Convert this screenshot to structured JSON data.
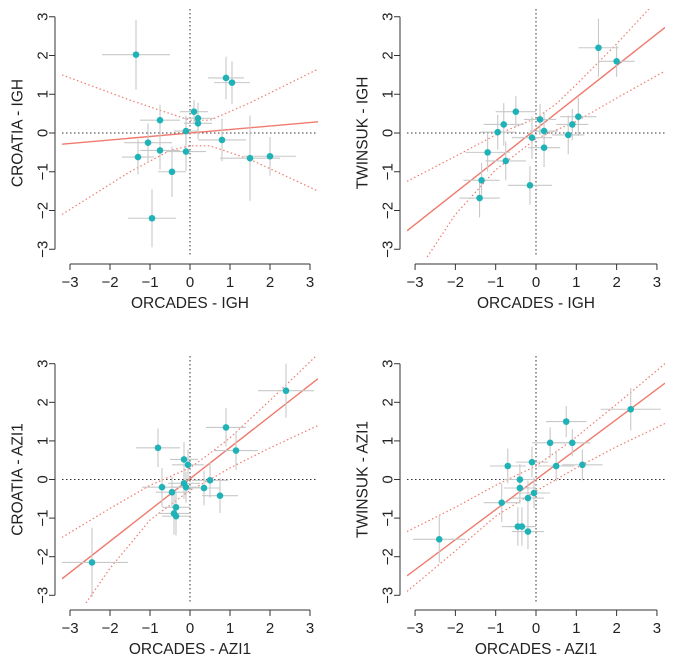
{
  "colors": {
    "point": "#1fb3b8",
    "fit": "#ef7a6e",
    "errorbar": "#c8c8c8",
    "axis": "#333333",
    "zero": "#333333"
  },
  "chart_data": [
    {
      "type": "scatter",
      "xlabel": "ORCADES - IGH",
      "ylabel": "CROATIA - IGH",
      "xlim": [
        -3.2,
        3.2
      ],
      "ylim": [
        -3.2,
        3.2
      ],
      "xticks": [
        "−3",
        "−2",
        "−1",
        "0",
        "1",
        "2",
        "3"
      ],
      "yticks": [
        "−3",
        "−2",
        "−1",
        "0",
        "1",
        "2",
        "3"
      ],
      "fit": {
        "slope": 0.09,
        "intercept": 0.0
      },
      "ci_upper": [
        [
          -3.2,
          1.5
        ],
        [
          -1.5,
          0.85
        ],
        [
          -0.5,
          0.5
        ],
        [
          0,
          0.33
        ],
        [
          0.5,
          0.33
        ],
        [
          1.5,
          0.78
        ],
        [
          3.2,
          1.65
        ]
      ],
      "ci_lower": [
        [
          -3.2,
          -2.1
        ],
        [
          -1.5,
          -1.0
        ],
        [
          -0.5,
          -0.45
        ],
        [
          0,
          -0.33
        ],
        [
          0.5,
          -0.33
        ],
        [
          1.5,
          -0.68
        ],
        [
          3.2,
          -1.5
        ]
      ],
      "points": [
        {
          "x": -1.35,
          "y": 2.02,
          "xerr": 0.85,
          "yerr": 0.9
        },
        {
          "x": 0.9,
          "y": 1.42,
          "xerr": 0.45,
          "yerr": 0.55
        },
        {
          "x": 1.05,
          "y": 1.3,
          "xerr": 0.45,
          "yerr": 0.55
        },
        {
          "x": 0.1,
          "y": 0.55,
          "xerr": 0.35,
          "yerr": 0.3
        },
        {
          "x": 0.2,
          "y": 0.38,
          "xerr": 0.4,
          "yerr": 0.4
        },
        {
          "x": -0.75,
          "y": 0.33,
          "xerr": 0.5,
          "yerr": 0.4
        },
        {
          "x": 0.2,
          "y": 0.25,
          "xerr": 0.35,
          "yerr": 0.4
        },
        {
          "x": -0.1,
          "y": 0.05,
          "xerr": 0.3,
          "yerr": 0.4
        },
        {
          "x": -1.05,
          "y": -0.25,
          "xerr": 0.6,
          "yerr": 0.5
        },
        {
          "x": 0.8,
          "y": -0.18,
          "xerr": 0.6,
          "yerr": 0.55
        },
        {
          "x": -0.75,
          "y": -0.45,
          "xerr": 0.5,
          "yerr": 0.5
        },
        {
          "x": -0.1,
          "y": -0.48,
          "xerr": 0.5,
          "yerr": 0.5
        },
        {
          "x": -1.3,
          "y": -0.62,
          "xerr": 0.4,
          "yerr": 0.45
        },
        {
          "x": 2.0,
          "y": -0.6,
          "xerr": 0.65,
          "yerr": 0.5
        },
        {
          "x": 1.5,
          "y": -0.65,
          "xerr": 0.75,
          "yerr": 1.1
        },
        {
          "x": -0.45,
          "y": -1.0,
          "xerr": 0.35,
          "yerr": 0.65
        },
        {
          "x": -0.95,
          "y": -2.2,
          "xerr": 0.6,
          "yerr": 0.75
        }
      ]
    },
    {
      "type": "scatter",
      "xlabel": "ORCADES - IGH",
      "ylabel": "TWINSUK - IGH",
      "xlim": [
        -3.2,
        3.2
      ],
      "ylim": [
        -3.2,
        3.2
      ],
      "xticks": [
        "−3",
        "−2",
        "−1",
        "0",
        "1",
        "2",
        "3"
      ],
      "yticks": [
        "−3",
        "−2",
        "−1",
        "0",
        "1",
        "2",
        "3"
      ],
      "fit": {
        "slope": 0.82,
        "intercept": 0.1
      },
      "ci_upper": [
        [
          -3.2,
          -1.25
        ],
        [
          -2.0,
          -0.6
        ],
        [
          -1.0,
          -0.05
        ],
        [
          0,
          0.38
        ],
        [
          0.5,
          0.75
        ],
        [
          1.0,
          1.25
        ],
        [
          2.0,
          2.3
        ],
        [
          2.8,
          3.2
        ]
      ],
      "ci_lower": [
        [
          -2.7,
          -3.2
        ],
        [
          -2.0,
          -2.1
        ],
        [
          -1.0,
          -0.95
        ],
        [
          0,
          -0.15
        ],
        [
          0.5,
          0.08
        ],
        [
          1.0,
          0.3
        ],
        [
          2.0,
          0.9
        ],
        [
          3.2,
          1.6
        ]
      ],
      "points": [
        {
          "x": 1.55,
          "y": 2.2,
          "xerr": 0.5,
          "yerr": 0.75
        },
        {
          "x": 2.0,
          "y": 1.85,
          "xerr": 0.45,
          "yerr": 0.4
        },
        {
          "x": -0.5,
          "y": 0.55,
          "xerr": 0.5,
          "yerr": 0.4
        },
        {
          "x": 1.05,
          "y": 0.42,
          "xerr": 0.45,
          "yerr": 0.5
        },
        {
          "x": 0.1,
          "y": 0.35,
          "xerr": 0.4,
          "yerr": 0.4
        },
        {
          "x": -0.8,
          "y": 0.22,
          "xerr": 0.5,
          "yerr": 0.55
        },
        {
          "x": 0.9,
          "y": 0.22,
          "xerr": 0.4,
          "yerr": 0.4
        },
        {
          "x": 0.2,
          "y": 0.05,
          "xerr": 0.35,
          "yerr": 0.5
        },
        {
          "x": -0.95,
          "y": 0.02,
          "xerr": 0.45,
          "yerr": 0.45
        },
        {
          "x": 0.8,
          "y": -0.05,
          "xerr": 0.4,
          "yerr": 0.5
        },
        {
          "x": -0.1,
          "y": -0.12,
          "xerr": 0.5,
          "yerr": 0.55
        },
        {
          "x": 0.2,
          "y": -0.38,
          "xerr": 0.4,
          "yerr": 0.5
        },
        {
          "x": -1.2,
          "y": -0.5,
          "xerr": 0.55,
          "yerr": 0.5
        },
        {
          "x": -0.75,
          "y": -0.72,
          "xerr": 0.5,
          "yerr": 0.5
        },
        {
          "x": -1.35,
          "y": -1.22,
          "xerr": 0.45,
          "yerr": 0.45
        },
        {
          "x": -0.15,
          "y": -1.35,
          "xerr": 0.55,
          "yerr": 0.5
        },
        {
          "x": -1.4,
          "y": -1.68,
          "xerr": 0.5,
          "yerr": 0.5
        }
      ]
    },
    {
      "type": "scatter",
      "xlabel": "ORCADES - AZI1",
      "ylabel": "CROATIA - AZI1",
      "xlim": [
        -3.2,
        3.2
      ],
      "ylim": [
        -3.2,
        3.2
      ],
      "xticks": [
        "−3",
        "−2",
        "−1",
        "0",
        "1",
        "2",
        "3"
      ],
      "yticks": [
        "−3",
        "−2",
        "−1",
        "0",
        "1",
        "2",
        "3"
      ],
      "fit": {
        "slope": 0.81,
        "intercept": 0.02
      },
      "ci_upper": [
        [
          -3.2,
          -1.5
        ],
        [
          -2.0,
          -0.75
        ],
        [
          -1.0,
          -0.15
        ],
        [
          0,
          0.3
        ],
        [
          0.5,
          0.68
        ],
        [
          1.0,
          1.08
        ],
        [
          2.0,
          2.05
        ],
        [
          3.2,
          3.25
        ]
      ],
      "ci_lower": [
        [
          -2.6,
          -3.2
        ],
        [
          -2.0,
          -2.3
        ],
        [
          -1.0,
          -1.05
        ],
        [
          0,
          -0.28
        ],
        [
          0.5,
          0.0
        ],
        [
          1.0,
          0.3
        ],
        [
          2.0,
          0.82
        ],
        [
          3.2,
          1.4
        ]
      ],
      "points": [
        {
          "x": 2.4,
          "y": 2.3,
          "xerr": 0.7,
          "yerr": 0.7
        },
        {
          "x": 0.9,
          "y": 1.35,
          "xerr": 0.5,
          "yerr": 0.5
        },
        {
          "x": -0.8,
          "y": 0.82,
          "xerr": 0.55,
          "yerr": 0.5
        },
        {
          "x": 1.15,
          "y": 0.75,
          "xerr": 0.55,
          "yerr": 0.5
        },
        {
          "x": -0.15,
          "y": 0.52,
          "xerr": 0.35,
          "yerr": 0.45
        },
        {
          "x": -0.05,
          "y": 0.38,
          "xerr": 0.4,
          "yerr": 0.4
        },
        {
          "x": 0.5,
          "y": -0.02,
          "xerr": 0.45,
          "yerr": 0.45
        },
        {
          "x": -0.15,
          "y": -0.1,
          "xerr": 0.4,
          "yerr": 0.4
        },
        {
          "x": -0.7,
          "y": -0.2,
          "xerr": 0.5,
          "yerr": 0.5
        },
        {
          "x": -0.1,
          "y": -0.2,
          "xerr": 0.35,
          "yerr": 0.4
        },
        {
          "x": 0.35,
          "y": -0.22,
          "xerr": 0.4,
          "yerr": 0.45
        },
        {
          "x": -0.45,
          "y": -0.33,
          "xerr": 0.4,
          "yerr": 0.4
        },
        {
          "x": 0.75,
          "y": -0.42,
          "xerr": 0.45,
          "yerr": 0.45
        },
        {
          "x": -0.35,
          "y": -0.72,
          "xerr": 0.35,
          "yerr": 0.4
        },
        {
          "x": -0.4,
          "y": -0.88,
          "xerr": 0.4,
          "yerr": 0.55
        },
        {
          "x": -0.35,
          "y": -0.95,
          "xerr": 0.35,
          "yerr": 0.5
        },
        {
          "x": -2.45,
          "y": -2.15,
          "xerr": 0.9,
          "yerr": 0.9
        }
      ]
    },
    {
      "type": "scatter",
      "xlabel": "ORCADES - AZI1",
      "ylabel": "TWINSUK - AZI1",
      "xlim": [
        -3.2,
        3.2
      ],
      "ylim": [
        -3.2,
        3.2
      ],
      "xticks": [
        "−3",
        "−2",
        "−1",
        "0",
        "1",
        "2",
        "3"
      ],
      "yticks": [
        "−3",
        "−2",
        "−1",
        "0",
        "1",
        "2",
        "3"
      ],
      "fit": {
        "slope": 0.78,
        "intercept": 0.0
      },
      "ci_upper": [
        [
          -3.2,
          -1.35
        ],
        [
          -2.0,
          -0.72
        ],
        [
          -1.0,
          -0.15
        ],
        [
          0,
          0.35
        ],
        [
          0.5,
          0.72
        ],
        [
          1.0,
          1.1
        ],
        [
          2.0,
          1.95
        ],
        [
          3.2,
          3.0
        ]
      ],
      "ci_lower": [
        [
          -3.2,
          -2.9
        ],
        [
          -2.0,
          -1.85
        ],
        [
          -1.0,
          -0.95
        ],
        [
          0,
          -0.3
        ],
        [
          0.5,
          0.0
        ],
        [
          1.0,
          0.3
        ],
        [
          2.0,
          0.85
        ],
        [
          3.2,
          1.45
        ]
      ],
      "points": [
        {
          "x": 2.35,
          "y": 1.82,
          "xerr": 0.75,
          "yerr": 0.55
        },
        {
          "x": 0.75,
          "y": 1.5,
          "xerr": 0.5,
          "yerr": 0.4
        },
        {
          "x": 0.35,
          "y": 0.95,
          "xerr": 0.45,
          "yerr": 0.4
        },
        {
          "x": 0.9,
          "y": 0.95,
          "xerr": 0.45,
          "yerr": 0.35
        },
        {
          "x": -0.1,
          "y": 0.45,
          "xerr": 0.4,
          "yerr": 0.4
        },
        {
          "x": -0.7,
          "y": 0.35,
          "xerr": 0.45,
          "yerr": 0.45
        },
        {
          "x": 0.5,
          "y": 0.35,
          "xerr": 0.45,
          "yerr": 0.4
        },
        {
          "x": 1.15,
          "y": 0.38,
          "xerr": 0.5,
          "yerr": 0.4
        },
        {
          "x": -0.4,
          "y": 0.0,
          "xerr": 0.4,
          "yerr": 0.4
        },
        {
          "x": -0.4,
          "y": -0.22,
          "xerr": 0.4,
          "yerr": 0.4
        },
        {
          "x": -0.05,
          "y": -0.35,
          "xerr": 0.4,
          "yerr": 0.4
        },
        {
          "x": -0.2,
          "y": -0.48,
          "xerr": 0.4,
          "yerr": 0.45
        },
        {
          "x": -0.85,
          "y": -0.6,
          "xerr": 0.45,
          "yerr": 0.5
        },
        {
          "x": -0.45,
          "y": -1.22,
          "xerr": 0.4,
          "yerr": 0.5
        },
        {
          "x": -0.35,
          "y": -1.22,
          "xerr": 0.35,
          "yerr": 0.5
        },
        {
          "x": -0.2,
          "y": -1.35,
          "xerr": 0.4,
          "yerr": 0.45
        },
        {
          "x": -2.4,
          "y": -1.55,
          "xerr": 0.65,
          "yerr": 0.6
        }
      ]
    }
  ]
}
